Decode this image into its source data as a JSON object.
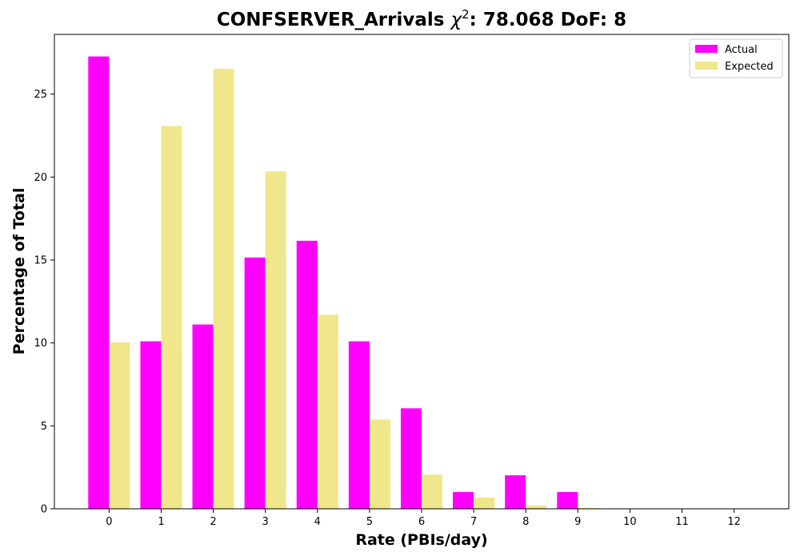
{
  "chart_data": {
    "type": "bar",
    "title": "CONFSERVER_Arrivals χ²: 78.068 DoF: 8",
    "title_parts": {
      "prefix": "CONFSERVER_Arrivals ",
      "chi": "χ",
      "sup": "2",
      "suffix": ": 78.068 DoF: 8"
    },
    "xlabel": "Rate (PBIs/day)",
    "ylabel": "Percentage of Total",
    "categories": [
      "0",
      "1",
      "2",
      "3",
      "4",
      "5",
      "6",
      "7",
      "8",
      "9",
      "10",
      "11",
      "12"
    ],
    "series": [
      {
        "name": "Actual",
        "color": "#ff00ff",
        "values": [
          27.27,
          10.1,
          11.11,
          15.15,
          16.16,
          10.1,
          6.06,
          1.01,
          2.02,
          1.01,
          0,
          0,
          0
        ]
      },
      {
        "name": "Expected",
        "color": "#f0e68c",
        "values": [
          10.03,
          23.07,
          26.53,
          20.34,
          11.7,
          5.38,
          2.06,
          0.68,
          0.2,
          0.05,
          0.01,
          0.0,
          0.0
        ]
      }
    ],
    "yticks": [
      0,
      5,
      10,
      15,
      20,
      25
    ],
    "ylim": [
      0,
      28.6
    ],
    "xlim": [
      -1.05,
      13.05
    ],
    "grid": false,
    "legend_position": "top-right"
  }
}
